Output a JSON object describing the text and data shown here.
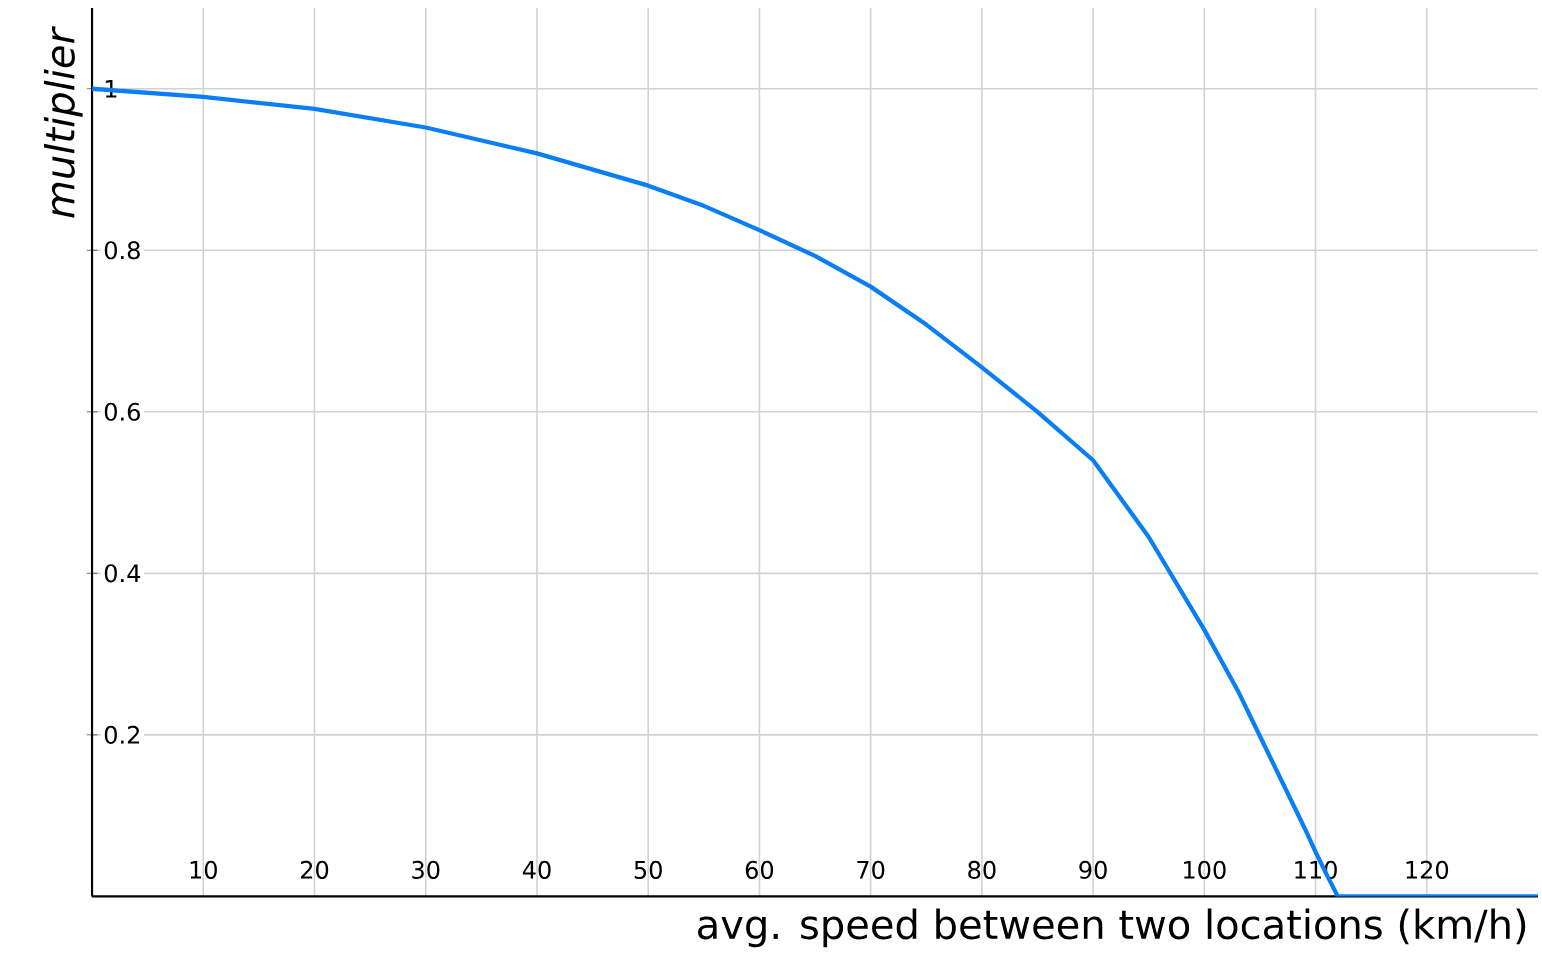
{
  "chart_data": {
    "type": "line",
    "xlabel": "avg. speed between two locations (km/h)",
    "ylabel": "multiplier",
    "x": [
      0,
      10,
      20,
      30,
      40,
      50,
      55,
      60,
      65,
      70,
      75,
      80,
      85,
      90,
      95,
      100,
      103,
      106,
      109,
      110,
      111,
      112,
      120,
      130
    ],
    "series": [
      {
        "color": "#0a7ff5",
        "values": [
          1,
          0.99,
          0.975,
          0.952,
          0.92,
          0.88,
          0.855,
          0.825,
          0.793,
          0.755,
          0.708,
          0.655,
          0.6,
          0.54,
          0.445,
          0.33,
          0.255,
          0.17,
          0.085,
          0.055,
          0.027,
          0,
          0,
          0
        ]
      }
    ],
    "xlim": [
      0,
      130
    ],
    "ylim": [
      0,
      1.1
    ],
    "xticks": [
      10,
      20,
      30,
      40,
      50,
      60,
      70,
      80,
      90,
      100,
      110,
      120
    ],
    "yticks": [
      0.2,
      0.4,
      0.6,
      0.8,
      1
    ],
    "grid": true,
    "marker": "none",
    "line_style": "solid"
  }
}
